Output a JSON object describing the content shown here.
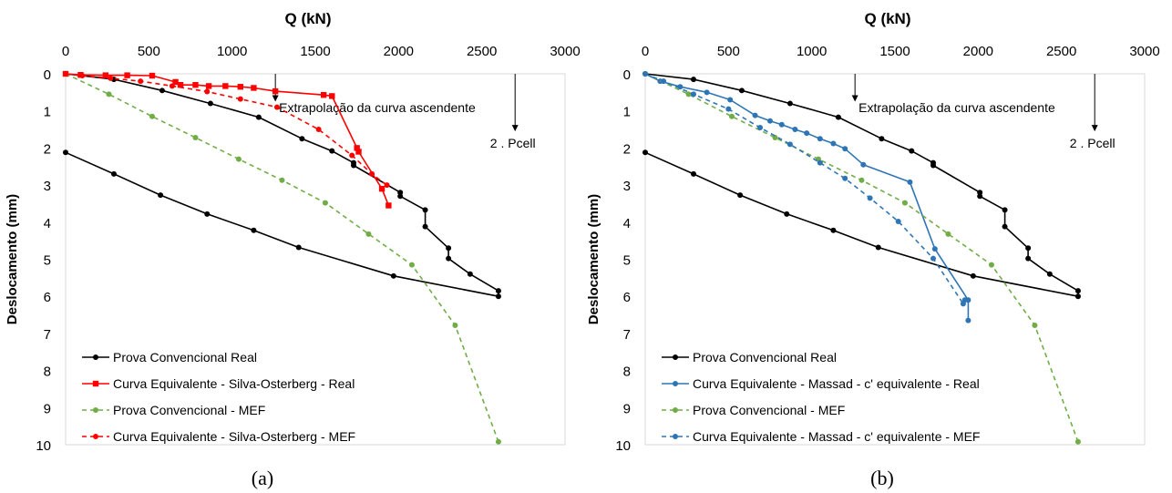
{
  "chart_data": [
    {
      "type": "line",
      "panel_label": "(a)",
      "xlabel": "Q (kN)",
      "ylabel": "Deslocamento (mm)",
      "xlim": [
        0,
        3000
      ],
      "ylim": [
        0,
        10
      ],
      "y_inverted": true,
      "x_axis_position": "top",
      "xticks": [
        "0",
        "500",
        "1000",
        "1500",
        "2000",
        "2500",
        "3000"
      ],
      "yticks": [
        "0",
        "1",
        "2",
        "3",
        "4",
        "5",
        "6",
        "7",
        "8",
        "9",
        "10"
      ],
      "grid": false,
      "legend_position": "bottom-left",
      "annotations": [
        {
          "text": "Extrapolação da curva ascendente",
          "arrow_x": 1260,
          "arrow_y": [
            0,
            0.75
          ]
        },
        {
          "text": "2 . Pcell",
          "arrow_x": 2700,
          "arrow_y": [
            0,
            1.55
          ]
        }
      ],
      "series": [
        {
          "name": "Prova Convencional Real",
          "color": "#000000",
          "dash": "solid",
          "marker": "circle",
          "x": [
            0,
            290,
            580,
            870,
            1160,
            1420,
            1600,
            1730,
            1730,
            2010,
            2010,
            2160,
            2160,
            2300,
            2300,
            2430,
            2600,
            2600,
            1970,
            1400,
            1130,
            850,
            570,
            290,
            0
          ],
          "y": [
            0,
            0.15,
            0.45,
            0.8,
            1.17,
            1.75,
            2.08,
            2.4,
            2.47,
            3.2,
            3.3,
            3.67,
            4.12,
            4.7,
            4.98,
            5.4,
            5.85,
            6.0,
            5.45,
            4.68,
            4.22,
            3.78,
            3.27,
            2.7,
            2.12
          ]
        },
        {
          "name": "Curva Equivalente - Silva-Osterberg - Real",
          "color": "#ff0000",
          "dash": "solid",
          "marker": "square",
          "x": [
            0,
            90,
            240,
            370,
            520,
            660,
            690,
            780,
            860,
            960,
            1050,
            1130,
            1260,
            1550,
            1600,
            1750,
            1760,
            1900,
            1940
          ],
          "y": [
            0,
            0.03,
            0.04,
            0.04,
            0.05,
            0.22,
            0.3,
            0.3,
            0.33,
            0.33,
            0.35,
            0.38,
            0.47,
            0.57,
            0.6,
            2.0,
            2.1,
            3.1,
            3.55
          ]
        },
        {
          "name": "Prova Convencional - MEF",
          "color": "#70ad47",
          "dash": "dashed",
          "marker": "circle",
          "x": [
            0,
            260,
            520,
            780,
            1040,
            1300,
            1560,
            1820,
            2080,
            2340,
            2600
          ],
          "y": [
            0,
            0.55,
            1.15,
            1.72,
            2.3,
            2.87,
            3.48,
            4.32,
            5.15,
            6.78,
            9.92
          ]
        },
        {
          "name": "Curva Equivalente - Silva-Osterberg - MEF",
          "color": "#ff0000",
          "dash": "dashed",
          "marker": "circle",
          "x": [
            0,
            100,
            270,
            450,
            640,
            850,
            1050,
            1270,
            1520,
            1720,
            1840,
            1930
          ],
          "y": [
            0,
            0.05,
            0.12,
            0.2,
            0.33,
            0.48,
            0.68,
            0.9,
            1.5,
            2.2,
            2.7,
            3.0
          ]
        }
      ]
    },
    {
      "type": "line",
      "panel_label": "(b)",
      "xlabel": "Q (kN)",
      "ylabel": "Deslocamento (mm)",
      "xlim": [
        0,
        3000
      ],
      "ylim": [
        0,
        10
      ],
      "y_inverted": true,
      "x_axis_position": "top",
      "xticks": [
        "0",
        "500",
        "1000",
        "1500",
        "2000",
        "2500",
        "3000"
      ],
      "yticks": [
        "0",
        "1",
        "2",
        "3",
        "4",
        "5",
        "6",
        "7",
        "8",
        "9",
        "10"
      ],
      "grid": false,
      "legend_position": "bottom-left",
      "annotations": [
        {
          "text": "Extrapolação da curva ascendente",
          "arrow_x": 1260,
          "arrow_y": [
            0,
            0.75
          ]
        },
        {
          "text": "2 . Pcell",
          "arrow_x": 2700,
          "arrow_y": [
            0,
            1.55
          ]
        }
      ],
      "series": [
        {
          "name": "Prova Convencional Real",
          "color": "#000000",
          "dash": "solid",
          "marker": "circle",
          "x": [
            0,
            290,
            580,
            870,
            1160,
            1420,
            1600,
            1730,
            1730,
            2010,
            2010,
            2160,
            2160,
            2300,
            2300,
            2430,
            2600,
            2600,
            1970,
            1400,
            1130,
            850,
            570,
            290,
            0
          ],
          "y": [
            0,
            0.15,
            0.45,
            0.8,
            1.17,
            1.75,
            2.08,
            2.4,
            2.47,
            3.2,
            3.3,
            3.67,
            4.12,
            4.7,
            4.98,
            5.4,
            5.85,
            6.0,
            5.45,
            4.68,
            4.22,
            3.78,
            3.27,
            2.7,
            2.12
          ]
        },
        {
          "name": "Curva Equivalente - Massad - c' equivalente - Real",
          "color": "#2e75b6",
          "dash": "solid",
          "marker": "circle",
          "x": [
            0,
            90,
            210,
            370,
            510,
            660,
            750,
            820,
            900,
            970,
            1050,
            1130,
            1200,
            1310,
            1590,
            1740,
            1940,
            1940
          ],
          "y": [
            0,
            0.2,
            0.35,
            0.5,
            0.7,
            1.12,
            1.27,
            1.37,
            1.5,
            1.6,
            1.75,
            1.88,
            2.02,
            2.45,
            2.92,
            4.72,
            6.1,
            6.65
          ]
        },
        {
          "name": "Prova Convencional - MEF",
          "color": "#70ad47",
          "dash": "dashed",
          "marker": "circle",
          "x": [
            0,
            260,
            520,
            780,
            1040,
            1300,
            1560,
            1820,
            2080,
            2340,
            2600
          ],
          "y": [
            0,
            0.55,
            1.15,
            1.72,
            2.3,
            2.87,
            3.48,
            4.32,
            5.15,
            6.78,
            9.92
          ]
        },
        {
          "name": "Curva Equivalente - Massad - c' equivalente - MEF",
          "color": "#2e75b6",
          "dash": "dashed",
          "marker": "circle",
          "x": [
            0,
            110,
            290,
            500,
            690,
            870,
            1050,
            1200,
            1350,
            1520,
            1730,
            1910,
            1920
          ],
          "y": [
            0,
            0.2,
            0.55,
            0.95,
            1.45,
            1.9,
            2.4,
            2.82,
            3.35,
            3.98,
            4.98,
            6.2,
            6.1
          ]
        }
      ]
    }
  ]
}
